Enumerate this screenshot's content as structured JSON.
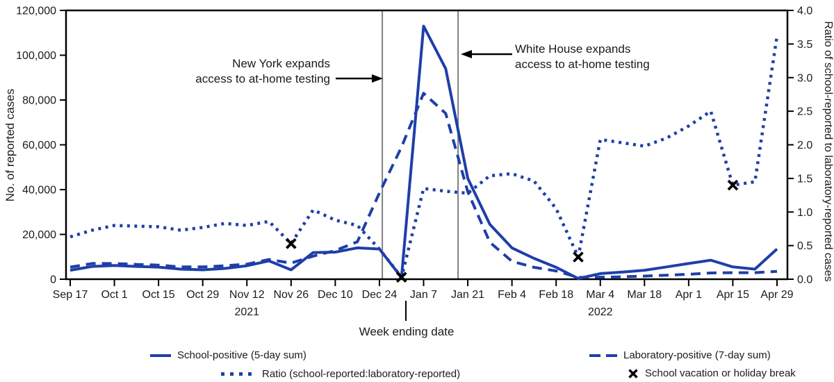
{
  "chart_data": {
    "type": "line",
    "xlabel": "Week ending date",
    "weeks": [
      "Sep 17",
      "Sep 24",
      "Oct 1",
      "Oct 8",
      "Oct 15",
      "Oct 22",
      "Oct 29",
      "Nov 5",
      "Nov 12",
      "Nov 19",
      "Nov 26",
      "Dec 3",
      "Dec 10",
      "Dec 17",
      "Dec 24",
      "Dec 31",
      "Jan 7",
      "Jan 14",
      "Jan 21",
      "Jan 28",
      "Feb 4",
      "Feb 11",
      "Feb 18",
      "Feb 25",
      "Mar 4",
      "Mar 11",
      "Mar 18",
      "Mar 25",
      "Apr 1",
      "Apr 8",
      "Apr 15",
      "Apr 22",
      "Apr 29"
    ],
    "x_tick_labels": [
      "Sep 17",
      "Oct 1",
      "Oct 15",
      "Oct 29",
      "Nov 12",
      "Nov 26",
      "Dec 10",
      "Dec 24",
      "Jan 7",
      "Jan 21",
      "Feb 4",
      "Feb 18",
      "Mar 4",
      "Mar 18",
      "Apr 1",
      "Apr 15",
      "Apr 29"
    ],
    "year_labels": [
      {
        "text": "2021",
        "week_index": 8
      },
      {
        "text": "2022",
        "week_index": 24
      }
    ],
    "left_axis": {
      "label": "No. of reported cases",
      "min": 0,
      "max": 120000,
      "tick_labels": [
        "0",
        "20,000",
        "40,000",
        "60,000",
        "80,000",
        "100,000",
        "120,000"
      ]
    },
    "right_axis": {
      "label": "Ratio of school-reported to laboratory-reported cases",
      "min": 0,
      "max": 4,
      "tick_labels": [
        "0.0",
        "0.5",
        "1.0",
        "1.5",
        "2.0",
        "2.5",
        "3.0",
        "3.5",
        "4.0"
      ]
    },
    "series": [
      {
        "name": "School-positive (5-day sum)",
        "style": "solid",
        "axis": "left",
        "values": [
          4000,
          5700,
          6100,
          5700,
          5400,
          4500,
          4200,
          4800,
          6000,
          8200,
          4200,
          11900,
          12100,
          14000,
          13500,
          800,
          113000,
          94000,
          45000,
          24500,
          14000,
          9300,
          5300,
          300,
          2500,
          3200,
          4000,
          5500,
          7000,
          8500,
          5500,
          4500,
          13500
        ]
      },
      {
        "name": "Laboratory-positive (7-day sum)",
        "style": "dashed",
        "axis": "left",
        "values": [
          5400,
          7000,
          7000,
          6600,
          6300,
          5500,
          5500,
          6000,
          6700,
          8800,
          7200,
          10300,
          12800,
          16700,
          38500,
          59000,
          83000,
          74000,
          39000,
          16500,
          8000,
          5300,
          3700,
          800,
          900,
          1100,
          1400,
          1800,
          2200,
          2800,
          2900,
          2900,
          3500
        ]
      },
      {
        "name": "Ratio (school-reported:laboratory-reported)",
        "style": "dotted",
        "axis": "right",
        "values": [
          0.63,
          0.73,
          0.8,
          0.79,
          0.78,
          0.73,
          0.77,
          0.83,
          0.8,
          0.86,
          0.53,
          1.03,
          0.88,
          0.8,
          0.45,
          0.03,
          1.35,
          1.31,
          1.28,
          1.54,
          1.57,
          1.46,
          1.05,
          0.33,
          2.08,
          2.03,
          1.98,
          2.1,
          2.28,
          2.5,
          1.4,
          1.45,
          3.62
        ]
      }
    ],
    "vacation_label": "School vacation or holiday break",
    "vacation_markers": [
      {
        "week": "Nov 26",
        "week_index": 10,
        "ratio": 0.53
      },
      {
        "week": "Dec 31",
        "week_index": 15,
        "ratio": 0.03
      },
      {
        "week": "Feb 25",
        "week_index": 23,
        "ratio": 0.33
      },
      {
        "week": "Apr 15",
        "week_index": 30,
        "ratio": 1.4
      }
    ],
    "annotations": [
      {
        "line1": "New York expands",
        "line2": "access to at-home testing",
        "week_frac": 14.13
      },
      {
        "line1": "White House expands",
        "line2": "access to at-home testing",
        "week_frac": 17.56
      }
    ],
    "colors": {
      "series_blue": "#1e3fa8",
      "event_line_gray": "#7f7f7f",
      "marker_black": "#000000",
      "text": "#1a1a1a"
    }
  }
}
